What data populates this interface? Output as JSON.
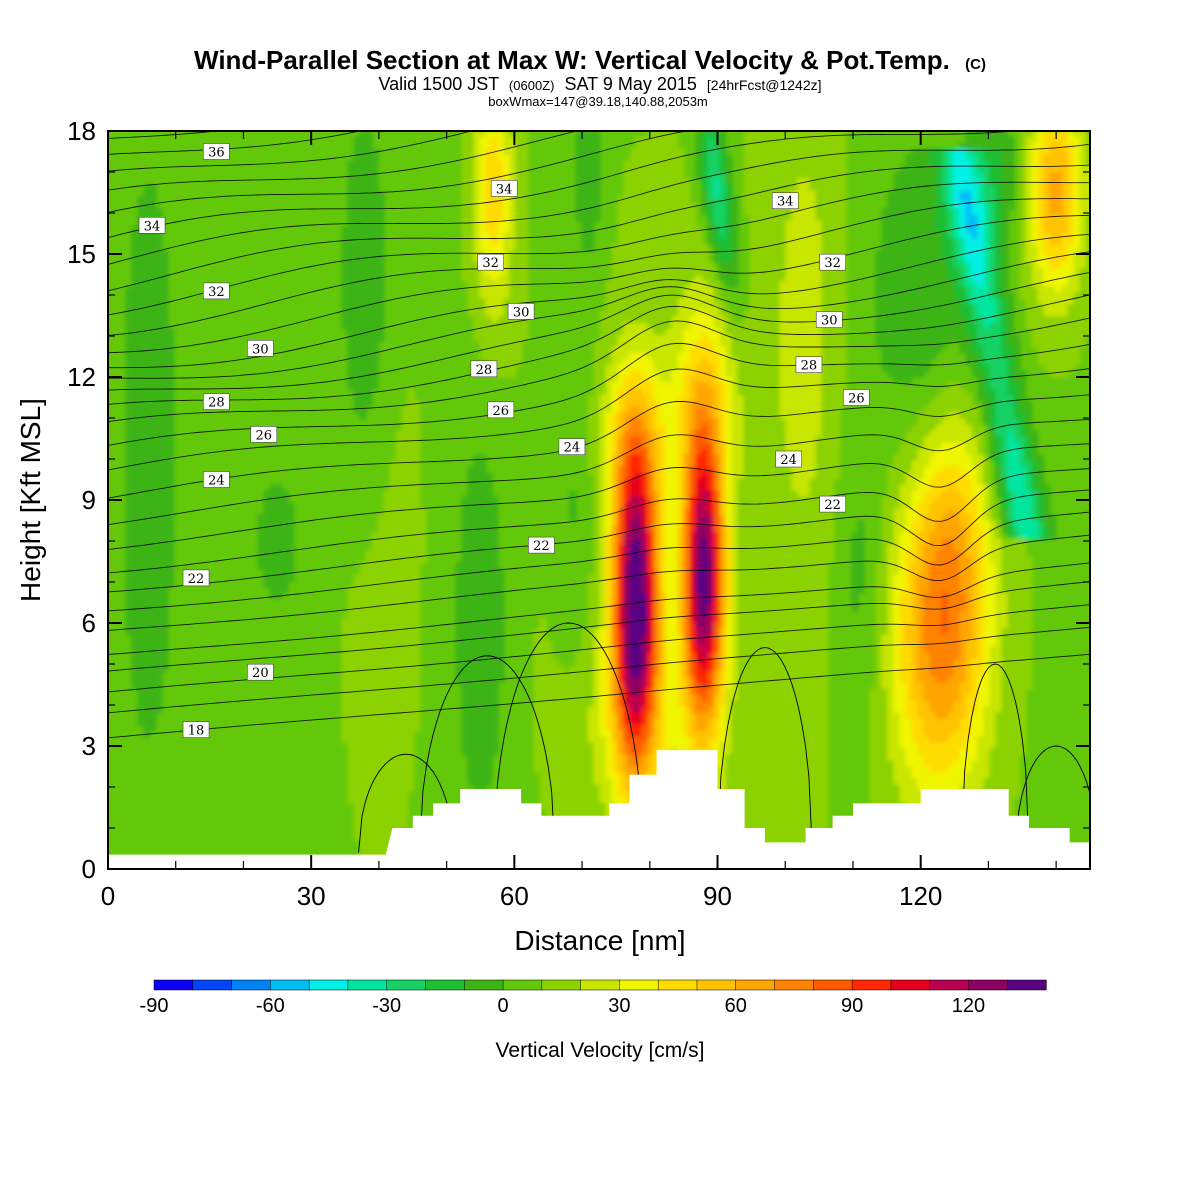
{
  "header": {
    "title": "Wind-Parallel Section at Max W: Vertical Velocity & Pot.Temp.",
    "copyright": "(C)",
    "valid_prefix": "Valid 1500 JST",
    "valid_utc": "(0600Z)",
    "valid_date": "SAT 9 May 2015",
    "forecast": "[24hrFcst@1242z]",
    "boxinfo": "boxWmax=147@39.18,140.88,2053m"
  },
  "chart_data": {
    "type": "heatmap",
    "xlabel": "Distance [nm]",
    "ylabel": "Height [Kft MSL]",
    "xlim": [
      0,
      145
    ],
    "ylim": [
      0,
      18
    ],
    "x_ticks": [
      0,
      30,
      60,
      90,
      120
    ],
    "x_tick_labels": [
      "0",
      "30",
      "60",
      "90",
      "120"
    ],
    "y_ticks": [
      0,
      3,
      6,
      9,
      12,
      15,
      18
    ],
    "y_tick_labels": [
      "0",
      "3",
      "6",
      "9",
      "12",
      "15",
      "18"
    ],
    "field": "Vertical Velocity",
    "colorbar": {
      "label": "Vertical Velocity [cm/s]",
      "min": -90,
      "max": 140,
      "step": 10,
      "tick_values": [
        -90,
        -60,
        -30,
        0,
        30,
        60,
        90,
        120
      ],
      "tick_labels": [
        "-90",
        "-60",
        "-30",
        "0",
        "30",
        "60",
        "90",
        "120"
      ],
      "colors": [
        "#0a00f5",
        "#0046f5",
        "#0082f5",
        "#00bef5",
        "#00f0e6",
        "#00e6a0",
        "#14d264",
        "#1ebe32",
        "#3cb414",
        "#64c80a",
        "#8cd200",
        "#c8e600",
        "#f0f500",
        "#ffdc00",
        "#ffc300",
        "#ffa500",
        "#ff8200",
        "#ff5a00",
        "#ff2800",
        "#e6001e",
        "#b90050",
        "#8c0064",
        "#5a0082"
      ]
    },
    "updraft_cores": [
      {
        "x": 78,
        "y": 6.5,
        "w_max": 140
      },
      {
        "x": 88,
        "y": 7.0,
        "w_max": 130
      },
      {
        "x": 123,
        "y": 5.5,
        "w_max": 70
      }
    ],
    "downdraft_bands": [
      {
        "x": 89,
        "y": 17,
        "w_min": -40
      },
      {
        "x": 134,
        "y": 12,
        "w_min": -45
      }
    ],
    "terrain_kft": [
      {
        "x": 0,
        "y": 0.35
      },
      {
        "x": 41,
        "y": 0.35
      },
      {
        "x": 42,
        "y": 1.0
      },
      {
        "x": 45,
        "y": 1.0
      },
      {
        "x": 45,
        "y": 1.3
      },
      {
        "x": 48,
        "y": 1.3
      },
      {
        "x": 48,
        "y": 1.6
      },
      {
        "x": 52,
        "y": 1.6
      },
      {
        "x": 52,
        "y": 1.95
      },
      {
        "x": 61,
        "y": 1.95
      },
      {
        "x": 61,
        "y": 1.6
      },
      {
        "x": 64,
        "y": 1.6
      },
      {
        "x": 64,
        "y": 1.3
      },
      {
        "x": 74,
        "y": 1.3
      },
      {
        "x": 74,
        "y": 1.6
      },
      {
        "x": 77,
        "y": 1.6
      },
      {
        "x": 77,
        "y": 2.3
      },
      {
        "x": 81,
        "y": 2.3
      },
      {
        "x": 81,
        "y": 2.9
      },
      {
        "x": 90,
        "y": 2.9
      },
      {
        "x": 90,
        "y": 1.95
      },
      {
        "x": 94,
        "y": 1.95
      },
      {
        "x": 94,
        "y": 1.0
      },
      {
        "x": 97,
        "y": 1.0
      },
      {
        "x": 97,
        "y": 0.65
      },
      {
        "x": 103,
        "y": 0.65
      },
      {
        "x": 103,
        "y": 1.0
      },
      {
        "x": 107,
        "y": 1.0
      },
      {
        "x": 107,
        "y": 1.3
      },
      {
        "x": 110,
        "y": 1.3
      },
      {
        "x": 110,
        "y": 1.6
      },
      {
        "x": 120,
        "y": 1.6
      },
      {
        "x": 120,
        "y": 1.95
      },
      {
        "x": 133,
        "y": 1.95
      },
      {
        "x": 133,
        "y": 1.3
      },
      {
        "x": 136,
        "y": 1.3
      },
      {
        "x": 136,
        "y": 1.0
      },
      {
        "x": 142,
        "y": 1.0
      },
      {
        "x": 142,
        "y": 0.65
      },
      {
        "x": 145,
        "y": 0.65
      }
    ],
    "theta_contours": {
      "units": "C",
      "levels": [
        18,
        20,
        22,
        24,
        26,
        28,
        30,
        32,
        34,
        36
      ],
      "labels": [
        {
          "text": "36",
          "x": 16,
          "y": 17.5
        },
        {
          "text": "34",
          "x": 6.5,
          "y": 15.7
        },
        {
          "text": "34",
          "x": 58.5,
          "y": 16.6
        },
        {
          "text": "34",
          "x": 100,
          "y": 16.3
        },
        {
          "text": "32",
          "x": 16,
          "y": 14.1
        },
        {
          "text": "32",
          "x": 56.5,
          "y": 14.8
        },
        {
          "text": "32",
          "x": 107,
          "y": 14.8
        },
        {
          "text": "30",
          "x": 22.5,
          "y": 12.7
        },
        {
          "text": "30",
          "x": 61,
          "y": 13.6
        },
        {
          "text": "30",
          "x": 106.5,
          "y": 13.4
        },
        {
          "text": "28",
          "x": 16,
          "y": 11.4
        },
        {
          "text": "28",
          "x": 55.5,
          "y": 12.2
        },
        {
          "text": "28",
          "x": 103.5,
          "y": 12.3
        },
        {
          "text": "26",
          "x": 23,
          "y": 10.6
        },
        {
          "text": "26",
          "x": 58,
          "y": 11.2
        },
        {
          "text": "26",
          "x": 110.5,
          "y": 11.5
        },
        {
          "text": "24",
          "x": 16,
          "y": 9.5
        },
        {
          "text": "24",
          "x": 68.5,
          "y": 10.3
        },
        {
          "text": "24",
          "x": 100.5,
          "y": 10.0
        },
        {
          "text": "22",
          "x": 13,
          "y": 7.1
        },
        {
          "text": "22",
          "x": 64,
          "y": 7.9
        },
        {
          "text": "22",
          "x": 107,
          "y": 8.9
        },
        {
          "text": "20",
          "x": 22.5,
          "y": 4.8
        },
        {
          "text": "18",
          "x": 13,
          "y": 3.4
        }
      ]
    }
  }
}
